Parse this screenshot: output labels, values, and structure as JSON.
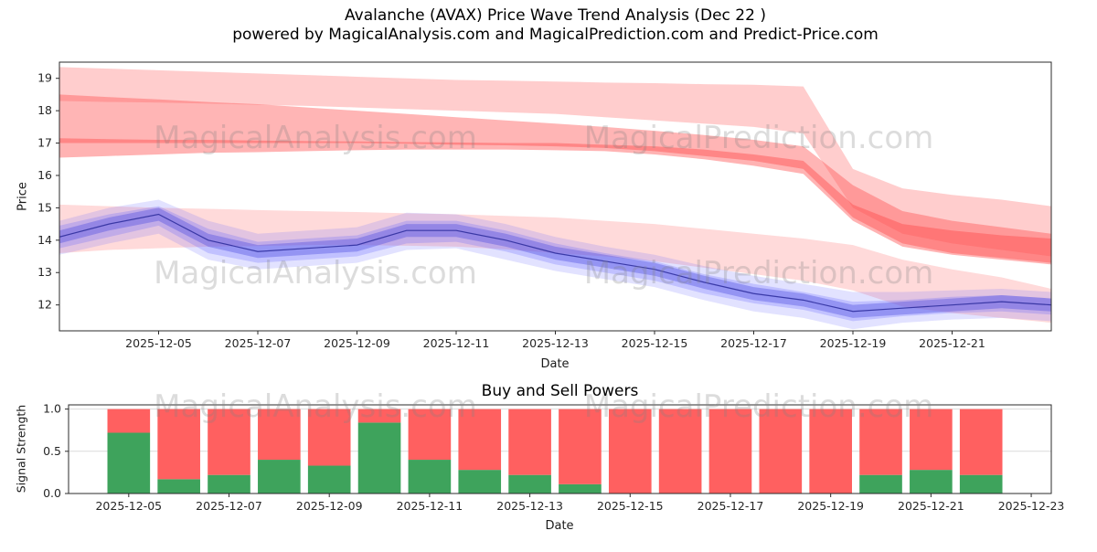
{
  "figure": {
    "title": "Avalanche (AVAX) Price Wave Trend Analysis (Dec 22 )",
    "subtitle": "powered by MagicalAnalysis.com and MagicalPrediction.com and Predict-Price.com"
  },
  "watermark": {
    "analysis": "MagicalAnalysis.com",
    "prediction": "MagicalPrediction.com"
  },
  "chart_data": [
    {
      "type": "area",
      "name": "price-wave-trend",
      "title": "Avalanche (AVAX) Price Wave Trend Analysis (Dec 22 )",
      "subtitle": "powered by MagicalAnalysis.com and MagicalPrediction.com and Predict-Price.com",
      "xlabel": "Date",
      "ylabel": "Price",
      "ylim": [
        11.2,
        19.5
      ],
      "xlim_days": [
        0,
        20
      ],
      "x_dates": [
        "2025-12-03",
        "2025-12-04",
        "2025-12-05",
        "2025-12-06",
        "2025-12-07",
        "2025-12-08",
        "2025-12-09",
        "2025-12-10",
        "2025-12-11",
        "2025-12-12",
        "2025-12-13",
        "2025-12-14",
        "2025-12-15",
        "2025-12-16",
        "2025-12-17",
        "2025-12-18",
        "2025-12-19",
        "2025-12-20",
        "2025-12-21",
        "2025-12-22",
        "2025-12-23"
      ],
      "yticks": [
        12,
        13,
        14,
        15,
        16,
        17,
        18,
        19
      ],
      "xticks": [
        {
          "day": 2,
          "label": "2025-12-05"
        },
        {
          "day": 4,
          "label": "2025-12-07"
        },
        {
          "day": 6,
          "label": "2025-12-09"
        },
        {
          "day": 8,
          "label": "2025-12-11"
        },
        {
          "day": 10,
          "label": "2025-12-13"
        },
        {
          "day": 12,
          "label": "2025-12-15"
        },
        {
          "day": 14,
          "label": "2025-12-17"
        },
        {
          "day": 16,
          "label": "2025-12-19"
        },
        {
          "day": 18,
          "label": "2025-12-21"
        }
      ],
      "bands": [
        {
          "name": "sell-band-outer",
          "color": "#ff7070",
          "opacity": 0.35,
          "upper": [
            19.35,
            19.3,
            19.25,
            19.2,
            19.15,
            19.1,
            19.05,
            19.0,
            18.95,
            18.93,
            18.9,
            18.87,
            18.85,
            18.82,
            18.8,
            18.75,
            16.2,
            15.6,
            15.4,
            15.25,
            15.05
          ],
          "lower": [
            18.3,
            18.27,
            18.25,
            18.22,
            18.18,
            18.15,
            18.1,
            18.05,
            18.0,
            17.95,
            17.9,
            17.8,
            17.7,
            17.6,
            17.5,
            17.3,
            15.0,
            14.2,
            13.9,
            13.7,
            13.5
          ]
        },
        {
          "name": "sell-band-mid",
          "color": "#ff5a5a",
          "opacity": 0.45,
          "upper": [
            18.5,
            18.42,
            18.35,
            18.27,
            18.2,
            18.1,
            18.0,
            17.9,
            17.8,
            17.7,
            17.6,
            17.5,
            17.38,
            17.25,
            17.1,
            16.9,
            15.7,
            14.9,
            14.6,
            14.4,
            14.2
          ],
          "lower": [
            17.0,
            17.0,
            17.0,
            17.0,
            17.0,
            17.0,
            17.0,
            16.98,
            16.95,
            16.93,
            16.9,
            16.85,
            16.75,
            16.6,
            16.45,
            16.2,
            14.7,
            13.9,
            13.6,
            13.45,
            13.3
          ]
        },
        {
          "name": "sell-band-core",
          "color": "#ff4040",
          "opacity": 0.4,
          "upper": [
            17.15,
            17.12,
            17.1,
            17.1,
            17.08,
            17.06,
            17.05,
            17.03,
            17.02,
            17.0,
            17.0,
            16.95,
            16.9,
            16.8,
            16.65,
            16.45,
            15.1,
            14.5,
            14.3,
            14.15,
            14.05
          ],
          "lower": [
            16.55,
            16.6,
            16.65,
            16.7,
            16.72,
            16.75,
            16.78,
            16.8,
            16.8,
            16.8,
            16.78,
            16.75,
            16.65,
            16.5,
            16.3,
            16.05,
            14.6,
            13.8,
            13.55,
            13.4,
            13.25
          ]
        },
        {
          "name": "sell-band-lower",
          "color": "#ff9090",
          "opacity": 0.33,
          "upper": [
            15.1,
            15.05,
            15.0,
            14.97,
            14.93,
            14.9,
            14.87,
            14.83,
            14.8,
            14.75,
            14.7,
            14.6,
            14.5,
            14.35,
            14.2,
            14.05,
            13.85,
            13.4,
            13.1,
            12.85,
            12.5
          ],
          "lower": [
            13.6,
            13.7,
            13.75,
            13.8,
            13.82,
            13.85,
            13.85,
            13.83,
            13.8,
            13.72,
            13.6,
            13.5,
            13.35,
            13.15,
            12.95,
            12.75,
            12.45,
            11.95,
            11.75,
            11.6,
            11.45
          ]
        },
        {
          "name": "wave-band-outer",
          "color": "#7070ff",
          "opacity": 0.2,
          "upper": [
            14.6,
            15.0,
            15.25,
            14.6,
            14.2,
            14.3,
            14.4,
            14.85,
            14.8,
            14.5,
            14.1,
            13.8,
            13.55,
            13.2,
            12.9,
            12.65,
            12.4,
            12.4,
            12.45,
            12.5,
            12.4
          ],
          "lower": [
            13.55,
            13.9,
            14.2,
            13.4,
            13.1,
            13.2,
            13.3,
            13.7,
            13.75,
            13.4,
            13.05,
            12.8,
            12.55,
            12.15,
            11.8,
            11.6,
            11.25,
            11.45,
            11.55,
            11.6,
            11.5
          ]
        },
        {
          "name": "wave-band-mid",
          "color": "#6060ff",
          "opacity": 0.25,
          "upper": [
            14.45,
            14.8,
            15.05,
            14.35,
            13.95,
            14.05,
            14.15,
            14.6,
            14.6,
            14.3,
            13.9,
            13.6,
            13.35,
            12.95,
            12.65,
            12.4,
            12.1,
            12.15,
            12.25,
            12.3,
            12.2
          ],
          "lower": [
            13.75,
            14.1,
            14.45,
            13.6,
            13.3,
            13.4,
            13.5,
            13.9,
            13.95,
            13.65,
            13.25,
            13.0,
            12.75,
            12.35,
            12.05,
            11.85,
            11.5,
            11.65,
            11.75,
            11.8,
            11.7
          ]
        },
        {
          "name": "wave-band-inner",
          "color": "#5050e0",
          "opacity": 0.4,
          "upper": [
            14.3,
            14.7,
            15.0,
            14.2,
            13.85,
            13.95,
            14.05,
            14.5,
            14.5,
            14.2,
            13.8,
            13.55,
            13.3,
            12.9,
            12.55,
            12.35,
            12.0,
            12.1,
            12.2,
            12.3,
            12.2
          ],
          "lower": [
            13.9,
            14.3,
            14.6,
            13.8,
            13.45,
            13.55,
            13.65,
            14.1,
            14.1,
            13.8,
            13.4,
            13.15,
            12.9,
            12.5,
            12.15,
            11.95,
            11.6,
            11.7,
            11.8,
            11.9,
            11.8
          ]
        }
      ],
      "center_line": {
        "name": "price-wave-center",
        "color": "#2a2a9a",
        "values": [
          14.1,
          14.5,
          14.8,
          14.0,
          13.65,
          13.75,
          13.85,
          14.3,
          14.3,
          14.0,
          13.6,
          13.35,
          13.1,
          12.7,
          12.35,
          12.15,
          11.8,
          11.9,
          12.0,
          12.1,
          12.0
        ]
      }
    },
    {
      "type": "bar",
      "name": "buy-sell-powers",
      "title": "Buy and Sell Powers",
      "xlabel": "Date",
      "ylabel": "Signal Strength",
      "ylim": [
        0,
        1.05
      ],
      "xlim_days": [
        0.8,
        20.4
      ],
      "yticks": [
        0,
        0.5,
        1
      ],
      "ytick_labels": [
        "0.0",
        "0.5",
        "1.0"
      ],
      "xticks": [
        {
          "day": 2,
          "label": "2025-12-05"
        },
        {
          "day": 4,
          "label": "2025-12-07"
        },
        {
          "day": 6,
          "label": "2025-12-09"
        },
        {
          "day": 8,
          "label": "2025-12-11"
        },
        {
          "day": 10,
          "label": "2025-12-13"
        },
        {
          "day": 12,
          "label": "2025-12-15"
        },
        {
          "day": 14,
          "label": "2025-12-17"
        },
        {
          "day": 16,
          "label": "2025-12-19"
        },
        {
          "day": 18,
          "label": "2025-12-21"
        },
        {
          "day": 20,
          "label": "2025-12-23"
        }
      ],
      "categories": [
        "2025-12-05",
        "2025-12-06",
        "2025-12-07",
        "2025-12-08",
        "2025-12-09",
        "2025-12-10",
        "2025-12-11",
        "2025-12-12",
        "2025-12-13",
        "2025-12-14",
        "2025-12-15",
        "2025-12-16",
        "2025-12-17",
        "2025-12-18",
        "2025-12-19",
        "2025-12-20",
        "2025-12-21",
        "2025-12-22"
      ],
      "bar_days": [
        2,
        3,
        4,
        5,
        6,
        7,
        8,
        9,
        10,
        11,
        12,
        13,
        14,
        15,
        16,
        17,
        18,
        19
      ],
      "bar_width_days": 0.85,
      "grid_color": "#dcdcdc",
      "series": [
        {
          "name": "Buy",
          "color": "#3ea35c",
          "values": [
            0.72,
            0.17,
            0.22,
            0.4,
            0.33,
            0.84,
            0.4,
            0.28,
            0.22,
            0.11,
            0,
            0,
            0,
            0,
            0,
            0.22,
            0.28,
            0.22
          ]
        },
        {
          "name": "Sell",
          "color": "#ff6060",
          "values": [
            0.28,
            0.83,
            0.78,
            0.6,
            0.67,
            0.16,
            0.6,
            0.72,
            0.78,
            0.89,
            1,
            1,
            1,
            1,
            1,
            0.78,
            0.72,
            0.78
          ]
        }
      ]
    }
  ]
}
